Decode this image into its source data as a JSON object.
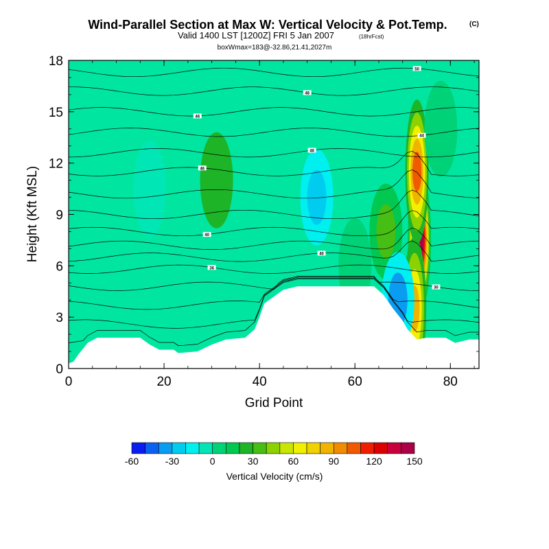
{
  "chart_data": {
    "type": "heatmap",
    "title": "Wind-Parallel Section at Max W: Vertical Velocity & Pot.Temp.",
    "title_mark": "(C)",
    "subtitle": "Valid 1400 LST [1200Z] FRI 5 Jan 2007",
    "subtitle_note": "(18hrFcst)",
    "subtitle2": "boxWmax=183@-32.86,21.41,2027m",
    "xlabel": "Grid Point",
    "ylabel": "Height (Kft MSL)",
    "xlim": [
      0,
      86
    ],
    "ylim": [
      0,
      18
    ],
    "xticks": [
      "0",
      "20",
      "40",
      "60",
      "80"
    ],
    "yticks": [
      "0",
      "3",
      "6",
      "9",
      "12",
      "15",
      "18"
    ],
    "colorbar": {
      "label": "Vertical Velocity (cm/s)",
      "min": -60,
      "max": 150,
      "step": 10,
      "tick_labels": [
        "-60",
        "-30",
        "0",
        "30",
        "60",
        "90",
        "120",
        "150"
      ],
      "colors": [
        "#0a1cf0",
        "#0a60f0",
        "#0a9cf0",
        "#00ccf0",
        "#00f0f0",
        "#00e6b4",
        "#00d278",
        "#00c850",
        "#1eb428",
        "#46be14",
        "#8cd200",
        "#c8e600",
        "#f0f000",
        "#f0d200",
        "#f0b400",
        "#f08c00",
        "#f05a00",
        "#f01e00",
        "#dc0000",
        "#c8003c",
        "#aa0046"
      ]
    },
    "terrain": [
      [
        0,
        0.3
      ],
      [
        1,
        0.4
      ],
      [
        2,
        0.8
      ],
      [
        4,
        1.5
      ],
      [
        6,
        1.8
      ],
      [
        15,
        1.8
      ],
      [
        17,
        1.4
      ],
      [
        19,
        1.1
      ],
      [
        22,
        1.1
      ],
      [
        23,
        0.9
      ],
      [
        27,
        1.0
      ],
      [
        30,
        1.4
      ],
      [
        33,
        1.7
      ],
      [
        37,
        1.8
      ],
      [
        39,
        2.3
      ],
      [
        40,
        3.0
      ],
      [
        41,
        3.8
      ],
      [
        43,
        4.2
      ],
      [
        45,
        4.6
      ],
      [
        48,
        4.8
      ],
      [
        60,
        4.8
      ],
      [
        64,
        4.8
      ],
      [
        66,
        4.3
      ],
      [
        68,
        3.5
      ],
      [
        70,
        2.8
      ],
      [
        71,
        2.3
      ],
      [
        72,
        2.0
      ],
      [
        73,
        1.7
      ],
      [
        75,
        1.8
      ],
      [
        79,
        1.8
      ],
      [
        81,
        1.5
      ],
      [
        84,
        1.7
      ],
      [
        86,
        1.7
      ]
    ],
    "w_features": [
      {
        "x": 73.5,
        "y": 7.5,
        "value": 150
      },
      {
        "x": 73.0,
        "y": 11.5,
        "value": 100
      },
      {
        "x": 72.5,
        "y": 3.5,
        "value": 80
      },
      {
        "x": 66.5,
        "y": 8.0,
        "value": 30
      },
      {
        "x": 52.0,
        "y": 10.0,
        "value": -30
      },
      {
        "x": 69.0,
        "y": 4.0,
        "value": -40
      },
      {
        "x": 17.0,
        "y": 10.5,
        "value": -10
      },
      {
        "x": 31.0,
        "y": 11.0,
        "value": 20
      },
      {
        "x": 60.0,
        "y": 6.0,
        "value": 0
      },
      {
        "x": 78.0,
        "y": 14.0,
        "value": 0
      }
    ],
    "theta_contours": [
      {
        "base": 1.5,
        "label": ""
      },
      {
        "base": 2.6,
        "label": ""
      },
      {
        "base": 3.7,
        "label": ""
      },
      {
        "base": 4.8,
        "label": "30"
      },
      {
        "base": 5.8,
        "label": "36"
      },
      {
        "base": 6.5,
        "label": "40"
      },
      {
        "base": 7.2,
        "label": ""
      },
      {
        "base": 8.0,
        "label": "40"
      },
      {
        "base": 9.0,
        "label": ""
      },
      {
        "base": 10.2,
        "label": ""
      },
      {
        "base": 11.5,
        "label": "46"
      },
      {
        "base": 12.6,
        "label": "46"
      },
      {
        "base": 13.8,
        "label": "44"
      },
      {
        "base": 15.0,
        "label": "46"
      },
      {
        "base": 16.2,
        "label": "48"
      },
      {
        "base": 17.3,
        "label": "50"
      }
    ]
  }
}
